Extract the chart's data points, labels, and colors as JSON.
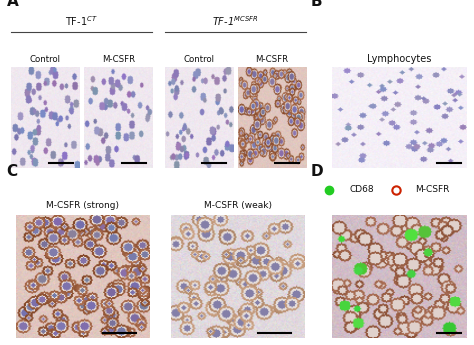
{
  "panel_A_label": "A",
  "panel_B_label": "B",
  "panel_C_label": "C",
  "panel_D_label": "D",
  "col_labels_A": [
    "Control",
    "M-CSFR",
    "Control",
    "M-CSFR"
  ],
  "group1_label": "TF-1$^{CT}$",
  "group2_label": "TF-1$^{MCSFR}$",
  "panel_B_title": "Lymphocytes",
  "panel_C_titles": [
    "M-CSFR (strong)",
    "M-CSFR (weak)"
  ],
  "panel_D_legend": [
    {
      "label": "CD68",
      "color": "#22cc22",
      "filled": true
    },
    {
      "label": "M-CSFR",
      "color": "#cc2200",
      "filled": false
    }
  ],
  "bg_color": "#ffffff",
  "text_color": "#111111",
  "scale_bar_color": "#000000",
  "line_color": "#444444",
  "seed": 42
}
